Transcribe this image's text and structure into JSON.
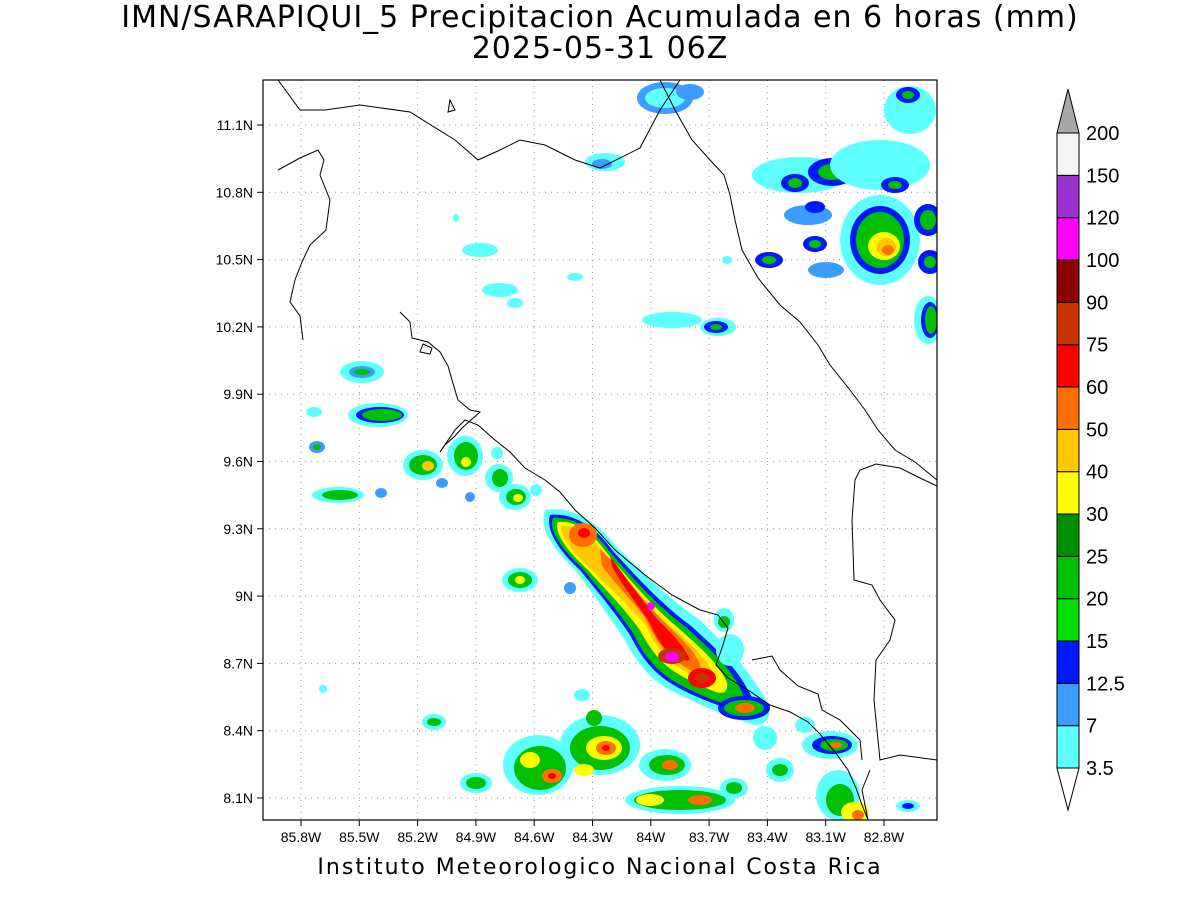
{
  "title": {
    "line1": "IMN/SARAPIQUI_5 Precipitacion Acumulada en 6 horas (mm)",
    "line2": "2025-05-31 06Z"
  },
  "footer": "Instituto Meteorologico Nacional Costa Rica",
  "axes": {
    "lat_ticks": [
      "11.1N",
      "10.8N",
      "10.5N",
      "10.2N",
      "9.9N",
      "9.6N",
      "9.3N",
      "9N",
      "8.7N",
      "8.4N",
      "8.1N"
    ],
    "lon_ticks": [
      "85.8W",
      "85.5W",
      "85.2W",
      "84.9W",
      "84.6W",
      "84.3W",
      "84W",
      "83.7W",
      "83.4W",
      "83.1W",
      "82.8W"
    ],
    "grid": "dotted"
  },
  "colorbar": {
    "labels": [
      "3.5",
      "7",
      "12.5",
      "15",
      "20",
      "25",
      "30",
      "40",
      "50",
      "60",
      "75",
      "90",
      "100",
      "120",
      "150",
      "200"
    ],
    "colors": [
      "#5effff",
      "#3a9dff",
      "#0018ff",
      "#00e000",
      "#00c000",
      "#008f00",
      "#ffff00",
      "#ffc800",
      "#ff6f00",
      "#ff0000",
      "#c83200",
      "#8b0000",
      "#ff00ff",
      "#9a30d0",
      "#f5f5f5"
    ],
    "top_arrow_color": "#a8a8a8",
    "bottom_arrow_color": "#ffffff"
  }
}
